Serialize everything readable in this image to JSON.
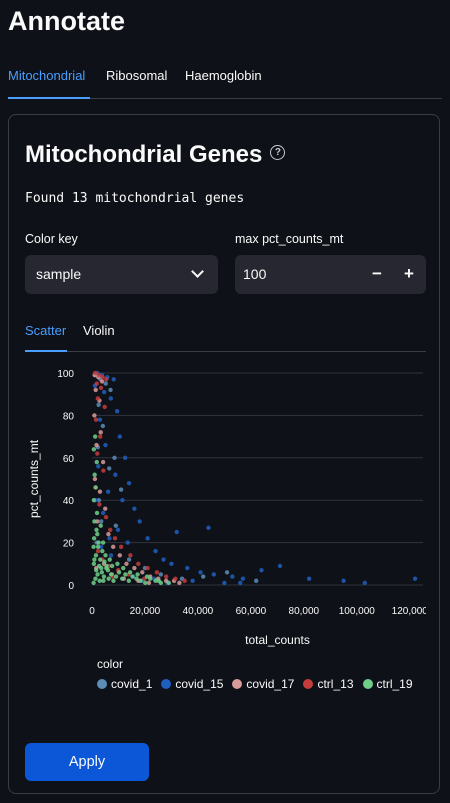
{
  "page": {
    "title": "Annotate"
  },
  "top_tabs": [
    {
      "label": "Mitochondrial",
      "active": true
    },
    {
      "label": "Ribosomal",
      "active": false
    },
    {
      "label": "Haemoglobin",
      "active": false
    }
  ],
  "card": {
    "title": "Mitochondrial Genes",
    "help_icon": "question-circle-icon",
    "found_text": "Found 13 mitochondrial genes",
    "color_key": {
      "label": "Color key",
      "value": "sample",
      "icon": "chevron-down-icon"
    },
    "max_field": {
      "label": "max pct_counts_mt",
      "value": "100",
      "decrement": "−",
      "increment": "+"
    },
    "view_tabs": [
      {
        "label": "Scatter",
        "active": true
      },
      {
        "label": "Violin",
        "active": false
      }
    ],
    "apply_label": "Apply"
  },
  "colors": {
    "background": "#0e1117",
    "accent": "#4a9eff",
    "button": "#0b57d8"
  },
  "chart_data": {
    "type": "scatter",
    "xlabel": "total_counts",
    "ylabel": "pct_counts_mt",
    "xlim": [
      0,
      125000
    ],
    "ylim": [
      0,
      100
    ],
    "xticks": [
      0,
      20000,
      40000,
      60000,
      80000,
      100000,
      120000
    ],
    "xtick_labels": [
      "0",
      "20,000",
      "40,000",
      "60,000",
      "80,000",
      "100,000",
      "120,000"
    ],
    "yticks": [
      0,
      20,
      40,
      60,
      80,
      100
    ],
    "ytick_labels": [
      "0",
      "20",
      "40",
      "60",
      "80",
      "100"
    ],
    "grid": true,
    "legend_title": "color",
    "legend_position": "bottom",
    "series": [
      {
        "name": "covid_1",
        "color": "#5b8db8",
        "values": [
          [
            1500,
            99
          ],
          [
            3200,
            97
          ],
          [
            5200,
            95
          ],
          [
            2500,
            85
          ],
          [
            7000,
            92
          ],
          [
            4100,
            75
          ],
          [
            2200,
            65
          ],
          [
            6500,
            55
          ],
          [
            8500,
            60
          ],
          [
            11000,
            45
          ],
          [
            3500,
            30
          ],
          [
            9000,
            28
          ],
          [
            14000,
            12
          ],
          [
            20000,
            8
          ],
          [
            26000,
            5
          ],
          [
            34000,
            3
          ],
          [
            42000,
            4
          ],
          [
            62000,
            2
          ],
          [
            51000,
            6
          ],
          [
            1800,
            20
          ],
          [
            2600,
            40
          ]
        ]
      },
      {
        "name": "covid_15",
        "color": "#1f5fbf",
        "values": [
          [
            2000,
            100
          ],
          [
            3800,
            99
          ],
          [
            5800,
            98
          ],
          [
            8200,
            97
          ],
          [
            1100,
            94
          ],
          [
            4600,
            91
          ],
          [
            7100,
            88
          ],
          [
            9500,
            82
          ],
          [
            3000,
            78
          ],
          [
            10500,
            70
          ],
          [
            5100,
            66
          ],
          [
            12500,
            60
          ],
          [
            2400,
            56
          ],
          [
            8800,
            52
          ],
          [
            14000,
            48
          ],
          [
            6100,
            44
          ],
          [
            11500,
            40
          ],
          [
            16000,
            36
          ],
          [
            4200,
            34
          ],
          [
            18000,
            30
          ],
          [
            9800,
            26
          ],
          [
            21000,
            22
          ],
          [
            13500,
            20
          ],
          [
            24000,
            16
          ],
          [
            7200,
            14
          ],
          [
            27000,
            12
          ],
          [
            30000,
            10
          ],
          [
            36000,
            8
          ],
          [
            41000,
            6
          ],
          [
            46000,
            5
          ],
          [
            53000,
            4
          ],
          [
            57000,
            3
          ],
          [
            64000,
            7
          ],
          [
            71000,
            9
          ],
          [
            82000,
            3
          ],
          [
            95000,
            2
          ],
          [
            103000,
            1
          ],
          [
            122000,
            3
          ],
          [
            32000,
            25
          ],
          [
            44000,
            27
          ],
          [
            56000,
            1
          ],
          [
            15500,
            4
          ],
          [
            19000,
            2
          ],
          [
            23500,
            3
          ],
          [
            28500,
            1
          ],
          [
            3400,
            18
          ],
          [
            1300,
            40
          ],
          [
            6600,
            22
          ],
          [
            38000,
            2
          ],
          [
            50000,
            1
          ]
        ]
      },
      {
        "name": "covid_17",
        "color": "#d99a9a",
        "values": [
          [
            1000,
            99
          ],
          [
            2400,
            98
          ],
          [
            3800,
            96
          ],
          [
            1400,
            92
          ],
          [
            2800,
            87
          ],
          [
            900,
            80
          ],
          [
            3300,
            72
          ],
          [
            1700,
            66
          ],
          [
            4200,
            58
          ],
          [
            1100,
            50
          ],
          [
            3000,
            44
          ],
          [
            5000,
            36
          ],
          [
            2000,
            30
          ],
          [
            6200,
            24
          ],
          [
            8000,
            18
          ],
          [
            10500,
            14
          ],
          [
            13000,
            10
          ],
          [
            16000,
            8
          ],
          [
            19000,
            6
          ],
          [
            22000,
            4
          ],
          [
            25000,
            3
          ],
          [
            28000,
            2
          ],
          [
            31000,
            2
          ],
          [
            33000,
            1
          ],
          [
            1600,
            8
          ],
          [
            4500,
            10
          ],
          [
            7500,
            5
          ],
          [
            12000,
            3
          ],
          [
            17500,
            2
          ],
          [
            21500,
            1
          ]
        ]
      },
      {
        "name": "ctrl_13",
        "color": "#c43c3c",
        "values": [
          [
            1200,
            100
          ],
          [
            2600,
            99
          ],
          [
            4000,
            98
          ],
          [
            5400,
            97
          ],
          [
            1800,
            95
          ],
          [
            3400,
            93
          ],
          [
            2200,
            88
          ],
          [
            4800,
            84
          ],
          [
            1500,
            78
          ],
          [
            3100,
            70
          ],
          [
            2000,
            62
          ],
          [
            4300,
            54
          ],
          [
            1300,
            46
          ],
          [
            2800,
            38
          ],
          [
            5300,
            32
          ],
          [
            6900,
            26
          ],
          [
            8700,
            22
          ],
          [
            11000,
            18
          ],
          [
            14500,
            14
          ],
          [
            17500,
            10
          ],
          [
            21000,
            8
          ],
          [
            24500,
            6
          ],
          [
            28000,
            4
          ],
          [
            31500,
            3
          ],
          [
            35000,
            2
          ],
          [
            3900,
            12
          ],
          [
            6400,
            9
          ],
          [
            9900,
            7
          ],
          [
            13800,
            5
          ],
          [
            19800,
            3
          ],
          [
            2300,
            16
          ],
          [
            7800,
            4
          ]
        ]
      },
      {
        "name": "ctrl_19",
        "color": "#6fcf8a",
        "values": [
          [
            600,
            1
          ],
          [
            1300,
            3
          ],
          [
            2100,
            5
          ],
          [
            2900,
            2
          ],
          [
            3700,
            6
          ],
          [
            4500,
            4
          ],
          [
            5400,
            8
          ],
          [
            6300,
            3
          ],
          [
            7200,
            5
          ],
          [
            8100,
            2
          ],
          [
            9100,
            4
          ],
          [
            10200,
            6
          ],
          [
            11400,
            3
          ],
          [
            12600,
            5
          ],
          [
            13900,
            2
          ],
          [
            15300,
            4
          ],
          [
            16800,
            3
          ],
          [
            18400,
            2
          ],
          [
            20100,
            1
          ],
          [
            22000,
            3
          ],
          [
            24000,
            2
          ],
          [
            26000,
            1
          ],
          [
            700,
            10
          ],
          [
            1500,
            14
          ],
          [
            2300,
            18
          ],
          [
            3100,
            12
          ],
          [
            3900,
            16
          ],
          [
            4700,
            11
          ],
          [
            5500,
            9
          ],
          [
            800,
            22
          ],
          [
            1700,
            26
          ],
          [
            2500,
            20
          ],
          [
            900,
            30
          ],
          [
            1900,
            34
          ],
          [
            700,
            40
          ],
          [
            1400,
            46
          ],
          [
            1000,
            52
          ],
          [
            1800,
            58
          ],
          [
            700,
            64
          ],
          [
            1200,
            70
          ],
          [
            900,
            12
          ],
          [
            1600,
            7
          ],
          [
            2700,
            9
          ],
          [
            3500,
            8
          ],
          [
            4300,
            2
          ],
          [
            6000,
            7
          ],
          [
            7600,
            9
          ],
          [
            9600,
            10
          ],
          [
            11800,
            8
          ],
          [
            14400,
            6
          ],
          [
            17200,
            5
          ],
          [
            20800,
            4
          ],
          [
            25200,
            2
          ],
          [
            29000,
            1
          ],
          [
            600,
            18
          ],
          [
            2000,
            24
          ],
          [
            3300,
            28
          ],
          [
            4200,
            20
          ],
          [
            5100,
            14
          ],
          [
            6700,
            12
          ]
        ]
      }
    ]
  }
}
